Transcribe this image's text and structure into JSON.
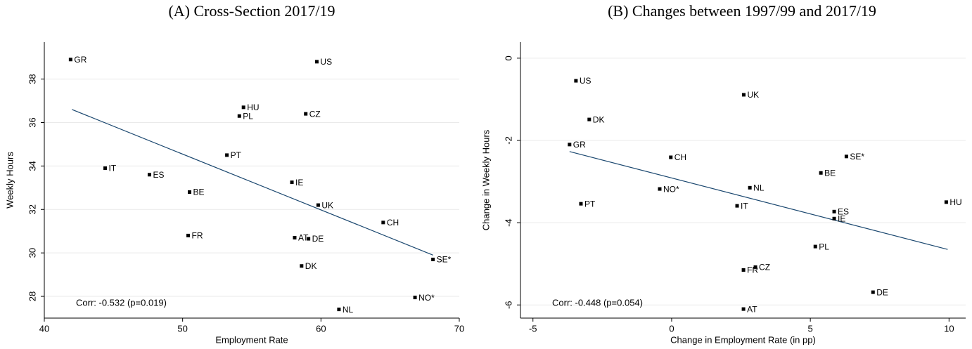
{
  "chart_data": [
    {
      "type": "scatter",
      "title": "(A) Cross-Section 2017/19",
      "x_label": "Employment Rate",
      "y_label": "Weekly Hours",
      "annotation": "Corr: -0.532 (p=0.019)",
      "color": "#000000",
      "fit_color": "#1a476f",
      "labels": [
        "GR",
        "US",
        "HU",
        "PL",
        "CZ",
        "PT",
        "IT",
        "ES",
        "IE",
        "BE",
        "UK",
        "CH",
        "FR",
        "AT",
        "DE",
        "DK",
        "SE*",
        "NO*",
        "NL"
      ],
      "x": [
        41.9,
        59.7,
        54.4,
        54.1,
        58.9,
        53.2,
        44.4,
        47.6,
        57.9,
        50.5,
        59.8,
        64.5,
        50.4,
        58.1,
        59.1,
        58.6,
        68.1,
        66.8,
        61.3
      ],
      "values": [
        38.9,
        38.8,
        36.7,
        36.3,
        36.4,
        34.5,
        33.9,
        33.6,
        33.25,
        32.8,
        32.2,
        31.4,
        30.8,
        30.7,
        30.65,
        29.4,
        29.7,
        27.95,
        27.4
      ],
      "fit": {
        "x": [
          42,
          68.1
        ],
        "y": [
          36.6,
          29.9
        ]
      },
      "xlim": [
        40,
        70
      ],
      "ylim": [
        27,
        39.7
      ],
      "xticks": [
        40,
        50,
        60,
        70
      ],
      "yticks": [
        28,
        30,
        32,
        34,
        36,
        38
      ],
      "grid": true
    },
    {
      "type": "scatter",
      "title": "(B) Changes between 1997/99 and 2017/19",
      "x_label": "Change in Employment Rate (in pp)",
      "y_label": "Change in Weekly Hours",
      "annotation": "Corr: -0.448 (p=0.054)",
      "color": "#000000",
      "fit_color": "#1a476f",
      "labels": [
        "US",
        "UK",
        "DK",
        "GR",
        "CH",
        "SE*",
        "BE",
        "NO*",
        "NL",
        "PT",
        "IT",
        "HU",
        "ES",
        "IE",
        "PL",
        "FR",
        "CZ",
        "DE",
        "AT"
      ],
      "x": [
        -3.45,
        2.6,
        -2.97,
        -3.68,
        -0.03,
        6.3,
        5.38,
        -0.43,
        2.82,
        -3.27,
        2.36,
        9.9,
        5.86,
        5.86,
        5.18,
        2.59,
        3.02,
        7.26,
        2.59
      ],
      "values": [
        -0.55,
        -0.89,
        -1.49,
        -2.1,
        -2.41,
        -2.39,
        -2.79,
        -3.18,
        -3.15,
        -3.54,
        -3.59,
        -3.5,
        -3.73,
        -3.9,
        -4.58,
        -5.15,
        -5.08,
        -5.69,
        -6.1
      ],
      "fit": {
        "x": [
          -3.68,
          9.95
        ],
        "y": [
          -2.27,
          -4.65
        ]
      },
      "xlim": [
        -5.45,
        10.6
      ],
      "ylim": [
        -6.32,
        0.39
      ],
      "xticks": [
        -5,
        0,
        5,
        10
      ],
      "yticks": [
        -6,
        -4,
        -2,
        0
      ],
      "grid": true
    }
  ]
}
